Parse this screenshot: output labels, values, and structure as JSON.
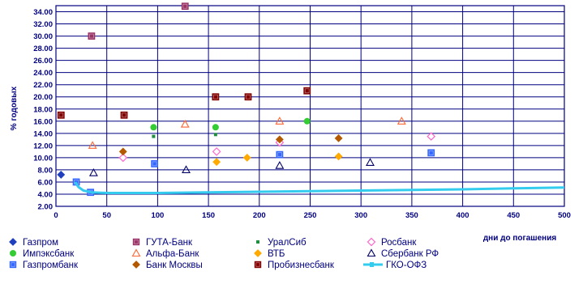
{
  "chart_data": {
    "type": "scatter",
    "title": "",
    "xlabel": "дни до погашения",
    "ylabel": "% годовых",
    "xlim": [
      0,
      500
    ],
    "ylim": [
      2.0,
      35.0
    ],
    "x_ticks": [
      0,
      50,
      100,
      150,
      200,
      250,
      300,
      350,
      400,
      450,
      500
    ],
    "y_ticks": [
      "2.00",
      "4.00",
      "6.00",
      "8.00",
      "10.00",
      "12.00",
      "14.00",
      "16.00",
      "18.00",
      "20.00",
      "22.00",
      "24.00",
      "26.00",
      "28.00",
      "30.00",
      "32.00",
      "34.00"
    ],
    "grid": true,
    "legend": "bottom",
    "series": [
      {
        "name": "Газпром",
        "marker": "diamond",
        "color": "#1f3fbf",
        "points": [
          [
            5,
            7.2
          ]
        ]
      },
      {
        "name": "ГУТА-Банк",
        "marker": "square",
        "color": "#993366",
        "points": [
          [
            35,
            30.0
          ],
          [
            127,
            34.9
          ]
        ]
      },
      {
        "name": "УралСиб",
        "marker": "small-square",
        "color": "#1f8f3f",
        "points": [
          [
            96,
            13.5
          ],
          [
            157,
            13.8
          ],
          [
            247,
            16.0
          ]
        ]
      },
      {
        "name": "Росбанк",
        "marker": "diamond-open",
        "color": "#ff66cc",
        "points": [
          [
            66,
            10.0
          ],
          [
            158,
            11.0
          ],
          [
            220,
            12.5
          ],
          [
            369,
            13.5
          ]
        ]
      },
      {
        "name": "Импэксбанк",
        "marker": "circle",
        "color": "#33cc33",
        "points": [
          [
            96,
            15.0
          ],
          [
            157,
            15.0
          ],
          [
            247,
            16.0
          ]
        ]
      },
      {
        "name": "Альфа-Банк",
        "marker": "triangle-open",
        "color": "#ff6633",
        "points": [
          [
            36,
            12.0
          ],
          [
            127,
            15.5
          ],
          [
            220,
            16.0
          ],
          [
            340,
            16.0
          ]
        ]
      },
      {
        "name": "ВТБ",
        "marker": "diamond",
        "color": "#ffaa00",
        "points": [
          [
            158,
            9.3
          ],
          [
            188,
            10.0
          ],
          [
            278,
            10.2
          ]
        ]
      },
      {
        "name": "Сбербанк РФ",
        "marker": "triangle-open",
        "color": "#000066",
        "points": [
          [
            37,
            7.5
          ],
          [
            128,
            8.0
          ],
          [
            220,
            8.7
          ],
          [
            309,
            9.2
          ]
        ]
      },
      {
        "name": "Газпромбанк",
        "marker": "square",
        "color": "#3366ff",
        "points": [
          [
            20,
            6.0
          ],
          [
            34,
            4.3
          ],
          [
            97,
            9.0
          ],
          [
            220,
            10.5
          ],
          [
            369,
            10.8
          ]
        ]
      },
      {
        "name": "Банк Москвы",
        "marker": "diamond",
        "color": "#b35900",
        "points": [
          [
            66,
            11.0
          ],
          [
            220,
            13.0
          ],
          [
            278,
            13.2
          ]
        ]
      },
      {
        "name": "Пробизнесбанк",
        "marker": "square",
        "color": "#800000",
        "points": [
          [
            5,
            17.0
          ],
          [
            67,
            17.0
          ],
          [
            157,
            20.0
          ],
          [
            189,
            20.0
          ],
          [
            247,
            21.0
          ]
        ]
      },
      {
        "name": "ГКО-ОФЗ",
        "marker": "line",
        "color": "#33ccee",
        "points": [
          [
            19,
            6.0
          ],
          [
            22,
            5.2
          ],
          [
            27,
            4.6
          ],
          [
            35,
            4.3
          ],
          [
            50,
            4.2
          ],
          [
            100,
            4.2
          ],
          [
            150,
            4.3
          ],
          [
            200,
            4.4
          ],
          [
            250,
            4.5
          ],
          [
            300,
            4.6
          ],
          [
            350,
            4.7
          ],
          [
            400,
            4.8
          ],
          [
            450,
            4.95
          ],
          [
            500,
            5.1
          ]
        ]
      }
    ]
  }
}
